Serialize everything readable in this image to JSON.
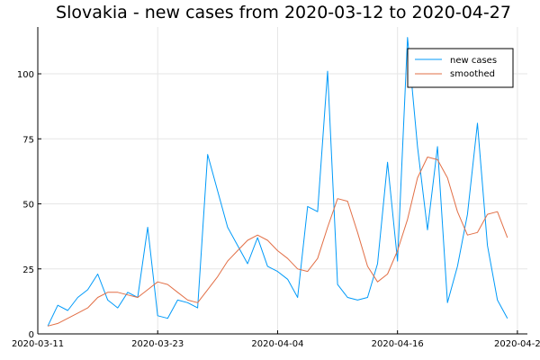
{
  "chart_data": {
    "type": "line",
    "title": "Slovakia - new cases from 2020-03-12 to 2020-04-27",
    "xlabel": "",
    "ylabel": "",
    "x": [
      "2020-03-12",
      "2020-03-13",
      "2020-03-14",
      "2020-03-15",
      "2020-03-16",
      "2020-03-17",
      "2020-03-18",
      "2020-03-19",
      "2020-03-20",
      "2020-03-21",
      "2020-03-22",
      "2020-03-23",
      "2020-03-24",
      "2020-03-25",
      "2020-03-26",
      "2020-03-27",
      "2020-03-28",
      "2020-03-29",
      "2020-03-30",
      "2020-03-31",
      "2020-04-01",
      "2020-04-02",
      "2020-04-03",
      "2020-04-04",
      "2020-04-05",
      "2020-04-06",
      "2020-04-07",
      "2020-04-08",
      "2020-04-09",
      "2020-04-10",
      "2020-04-11",
      "2020-04-12",
      "2020-04-13",
      "2020-04-14",
      "2020-04-15",
      "2020-04-16",
      "2020-04-17",
      "2020-04-18",
      "2020-04-19",
      "2020-04-20",
      "2020-04-21",
      "2020-04-22",
      "2020-04-23",
      "2020-04-24",
      "2020-04-25",
      "2020-04-26",
      "2020-04-27"
    ],
    "series": [
      {
        "name": "new cases",
        "color": "#009af9",
        "values": [
          3,
          11,
          9,
          14,
          17,
          23,
          13,
          10,
          16,
          14,
          41,
          7,
          6,
          13,
          12,
          10,
          69,
          55,
          41,
          34,
          27,
          37,
          26,
          24,
          21,
          14,
          49,
          47,
          101,
          19,
          14,
          13,
          14,
          27,
          66,
          28,
          114,
          72,
          40,
          72,
          12,
          26,
          46,
          81,
          34,
          13,
          6
        ]
      },
      {
        "name": "smoothed",
        "color": "#e26f46",
        "values": [
          3,
          4,
          6,
          8,
          10,
          14,
          16,
          16,
          15,
          14,
          17,
          20,
          19,
          16,
          13,
          12,
          17,
          22,
          28,
          32,
          36,
          38,
          36,
          32,
          29,
          25,
          24,
          29,
          41,
          52,
          51,
          39,
          26,
          20,
          23,
          32,
          44,
          60,
          68,
          67,
          60,
          47,
          38,
          39,
          46,
          47,
          37
        ]
      }
    ],
    "yticks": [
      0,
      25,
      50,
      75,
      100
    ],
    "xticks": [
      "2020-03-11",
      "2020-03-23",
      "2020-04-04",
      "2020-04-16",
      "2020-04-2"
    ],
    "ylim": [
      0,
      118
    ],
    "xlim": [
      "2020-03-11",
      "2020-04-29"
    ],
    "grid": true,
    "legend": "top-right"
  }
}
